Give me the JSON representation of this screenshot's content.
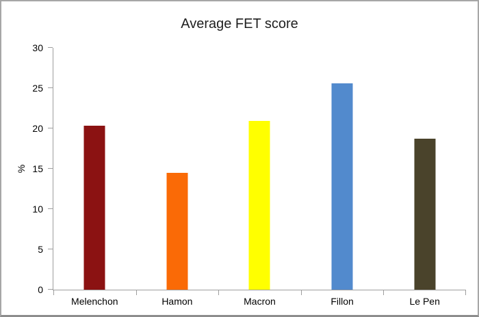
{
  "chart_data": {
    "type": "bar",
    "title": "Average FET score",
    "xlabel": "",
    "ylabel": "%",
    "categories": [
      "Melenchon",
      "Hamon",
      "Macron",
      "Fillon",
      "Le Pen"
    ],
    "values": [
      20.3,
      14.5,
      20.9,
      25.6,
      18.7
    ],
    "bar_colors": [
      "#8b1212",
      "#fa6a06",
      "#ffff00",
      "#528acd",
      "#4a432b"
    ],
    "ylim": [
      0,
      30
    ],
    "yticks": [
      0,
      5,
      10,
      15,
      20,
      25,
      30
    ],
    "grid": "off",
    "legend": "none",
    "axis_color": "#9d9d9d",
    "text_color": "#000000",
    "background_color": "#ffffff"
  }
}
